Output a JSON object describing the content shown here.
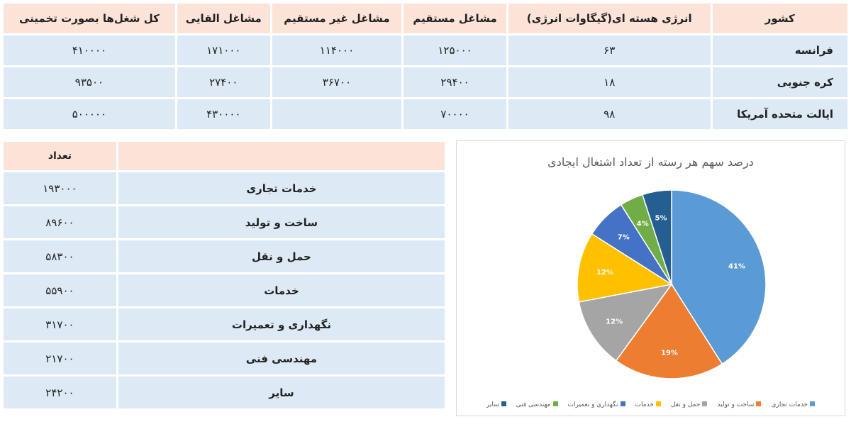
{
  "energy_table": {
    "headers": [
      "کشور",
      "انرژی هسته ای(گیگاوات انرژی)",
      "مشاغل مستقیم",
      "مشاغل غیر مستقیم",
      "مشاغل القایی",
      "کل شغل‌ها بصورت تخمینی"
    ],
    "rows": [
      [
        "فرانسه",
        "۶۳",
        "۱۲۵۰۰۰",
        "۱۱۴۰۰۰",
        "۱۷۱۰۰۰",
        "۴۱۰۰۰۰"
      ],
      [
        "کره جنوبی",
        "۱۸",
        "۲۹۴۰۰",
        "۳۶۷۰۰",
        "۲۷۴۰۰",
        "۹۳۵۰۰"
      ],
      [
        "ایالت متحده آمریکا",
        "۹۸",
        "۷۰۰۰۰",
        "",
        "۴۳۰۰۰۰",
        "۵۰۰۰۰۰"
      ]
    ]
  },
  "jobs_table": {
    "headers": [
      "",
      "تعداد"
    ],
    "rows": [
      [
        "خدمات تجاری",
        "۱۹۳۰۰۰"
      ],
      [
        "ساخت و تولید",
        "۸۹۶۰۰"
      ],
      [
        "حمل و نقل",
        "۵۸۳۰۰"
      ],
      [
        "خدمات",
        "۵۵۹۰۰"
      ],
      [
        "نگهداری و تعمیرات",
        "۳۱۷۰۰"
      ],
      [
        "مهندسی فنی",
        "۲۱۷۰۰"
      ],
      [
        "سایر",
        "۲۴۲۰۰"
      ]
    ]
  },
  "chart_data": {
    "type": "pie",
    "title": "درصد سهم هر رسته از تعداد اشتغال ایجادی",
    "categories": [
      "خدمات تجاری",
      "ساخت و تولید",
      "حمل و نقل",
      "خدمات",
      "نگهداری و تعمیرات",
      "مهندسی فنی",
      "سایر"
    ],
    "values": [
      41,
      19,
      12,
      12,
      7,
      4,
      5
    ],
    "labels": [
      "41%",
      "19%",
      "12%",
      "12%",
      "7%",
      "4%",
      "5%"
    ],
    "colors": [
      "#5b9bd5",
      "#ed7d31",
      "#a5a5a5",
      "#ffc000",
      "#4472c4",
      "#70ad47",
      "#255e91"
    ],
    "legend": "bottom"
  }
}
